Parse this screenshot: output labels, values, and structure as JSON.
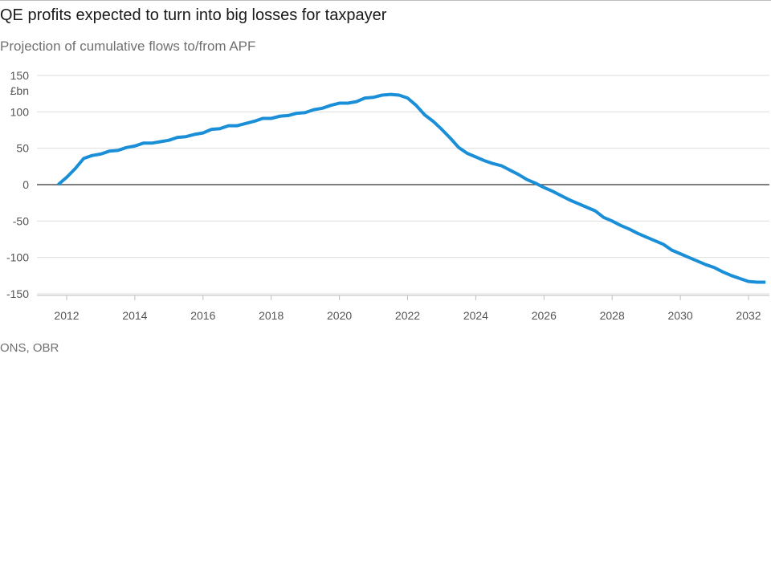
{
  "title": "QE profits expected to turn into big losses for taxpayer",
  "subtitle": "Projection of cumulative flows to/from APF",
  "source": "ONS, OBR",
  "colors": {
    "line": "#1a8fd8",
    "grid": "#dddddd",
    "zero_line": "#333333",
    "axis": "#bbbbbb"
  },
  "chart_data": {
    "type": "line",
    "title": "QE profits expected to turn into big losses for taxpayer",
    "subtitle": "Projection of cumulative flows to/from APF",
    "xlabel": "",
    "ylabel": "£bn",
    "xlim": [
      2011.3,
      2032.6
    ],
    "ylim": [
      -160,
      150
    ],
    "x_ticks": [
      2012,
      2014,
      2016,
      2018,
      2020,
      2022,
      2024,
      2026,
      2028,
      2030,
      2032
    ],
    "y_ticks": [
      150,
      100,
      50,
      0,
      -50,
      -100,
      -150
    ],
    "grid": "horizontal",
    "legend": "none",
    "series": [
      {
        "x": [
          2011.75,
          2012.0,
          2012.25,
          2012.5,
          2012.75,
          2013.0,
          2013.25,
          2013.5,
          2013.75,
          2014.0,
          2014.25,
          2014.5,
          2014.75,
          2015.0,
          2015.25,
          2015.5,
          2015.75,
          2016.0,
          2016.25,
          2016.5,
          2016.75,
          2017.0,
          2017.25,
          2017.5,
          2017.75,
          2018.0,
          2018.25,
          2018.5,
          2018.75,
          2019.0,
          2019.25,
          2019.5,
          2019.75,
          2020.0,
          2020.25,
          2020.5,
          2020.75,
          2021.0,
          2021.25,
          2021.5,
          2021.75,
          2022.0,
          2022.25,
          2022.5,
          2022.75,
          2023.0,
          2023.25,
          2023.5,
          2023.75,
          2024.0,
          2024.25,
          2024.5,
          2024.75,
          2025.0,
          2025.25,
          2025.5,
          2025.75,
          2026.0,
          2026.25,
          2026.5,
          2026.75,
          2027.0,
          2027.25,
          2027.5,
          2027.75,
          2028.0,
          2028.25,
          2028.5,
          2028.75,
          2029.0,
          2029.25,
          2029.5,
          2029.75,
          2030.0,
          2030.25,
          2030.5,
          2030.75,
          2031.0,
          2031.25,
          2031.5,
          2031.75,
          2032.0,
          2032.25,
          2032.5
        ],
        "y": [
          0,
          10,
          22,
          36,
          40,
          42,
          46,
          47,
          51,
          53,
          57,
          57,
          59,
          61,
          65,
          66,
          69,
          71,
          76,
          77,
          81,
          81,
          84,
          87,
          91,
          91,
          94,
          95,
          98,
          99,
          103,
          105,
          109,
          112,
          112,
          114,
          119,
          120,
          123,
          124,
          123,
          119,
          109,
          96,
          87,
          76,
          64,
          51,
          43,
          38,
          33,
          29,
          26,
          20,
          14,
          7,
          2,
          -4,
          -9,
          -15,
          -21,
          -26,
          -31,
          -36,
          -45,
          -50,
          -56,
          -61,
          -67,
          -72,
          -77,
          -82,
          -90,
          -95,
          -100,
          -105,
          -110,
          -114,
          -120,
          -125,
          -129,
          -133,
          -134,
          -134
        ]
      }
    ]
  }
}
